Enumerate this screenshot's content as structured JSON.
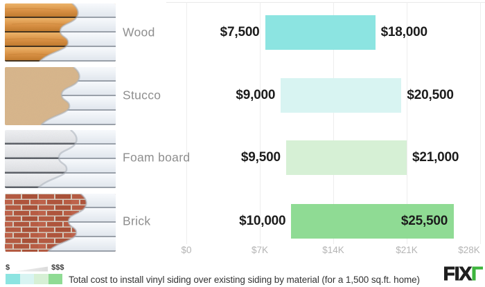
{
  "chart_data": {
    "type": "bar",
    "orientation": "horizontal",
    "subtype": "range",
    "title": "Total cost to install vinyl siding over existing siding by material (for a 1,500 sq.ft. home)",
    "categories": [
      "Wood",
      "Stucco",
      "Foam board",
      "Brick"
    ],
    "series": [
      {
        "name": "minimum cost",
        "values": [
          7500,
          9000,
          9500,
          10000
        ]
      },
      {
        "name": "maximum cost",
        "values": [
          18000,
          20500,
          21000,
          25500
        ]
      }
    ],
    "rows": [
      {
        "label": "Wood",
        "min": 7500,
        "max": 18000,
        "min_label": "$7,500",
        "max_label": "$18,000",
        "color": "#8ce4e1",
        "max_label_inside": false,
        "image": "wood"
      },
      {
        "label": "Stucco",
        "min": 9000,
        "max": 20500,
        "min_label": "$9,000",
        "max_label": "$20,500",
        "color": "#d8f4f2",
        "max_label_inside": false,
        "image": "stucco"
      },
      {
        "label": "Foam board",
        "min": 9500,
        "max": 21000,
        "min_label": "$9,500",
        "max_label": "$21,000",
        "color": "#d6f0d5",
        "max_label_inside": false,
        "image": "foam-board"
      },
      {
        "label": "Brick",
        "min": 10000,
        "max": 25500,
        "min_label": "$10,000",
        "max_label": "$25,500",
        "color": "#8fdb94",
        "max_label_inside": true,
        "image": "brick"
      }
    ],
    "axis": {
      "min": 0,
      "max": 28000,
      "ticks": [
        {
          "value": 0,
          "label": "$0"
        },
        {
          "value": 7000,
          "label": "$7K"
        },
        {
          "value": 14000,
          "label": "$14K"
        },
        {
          "value": 21000,
          "label": "$21K"
        },
        {
          "value": 28000,
          "label": "$28K"
        }
      ]
    },
    "grid": true,
    "xlabel": "",
    "ylabel": "",
    "legend_position": "bottom-left"
  },
  "legend": {
    "low_label": "$",
    "high_label": "$$$",
    "swatches": [
      "#8ce4e1",
      "#d8f4f2",
      "#d6f0d5",
      "#8fdb94"
    ]
  },
  "caption": "Total cost to install vinyl siding over existing siding by material (for a 1,500 sq.ft. home)",
  "brand": {
    "text_dark": "FIX",
    "text_green": "Γ",
    "green": "#3db53d",
    "dark": "#1f1f1f"
  }
}
